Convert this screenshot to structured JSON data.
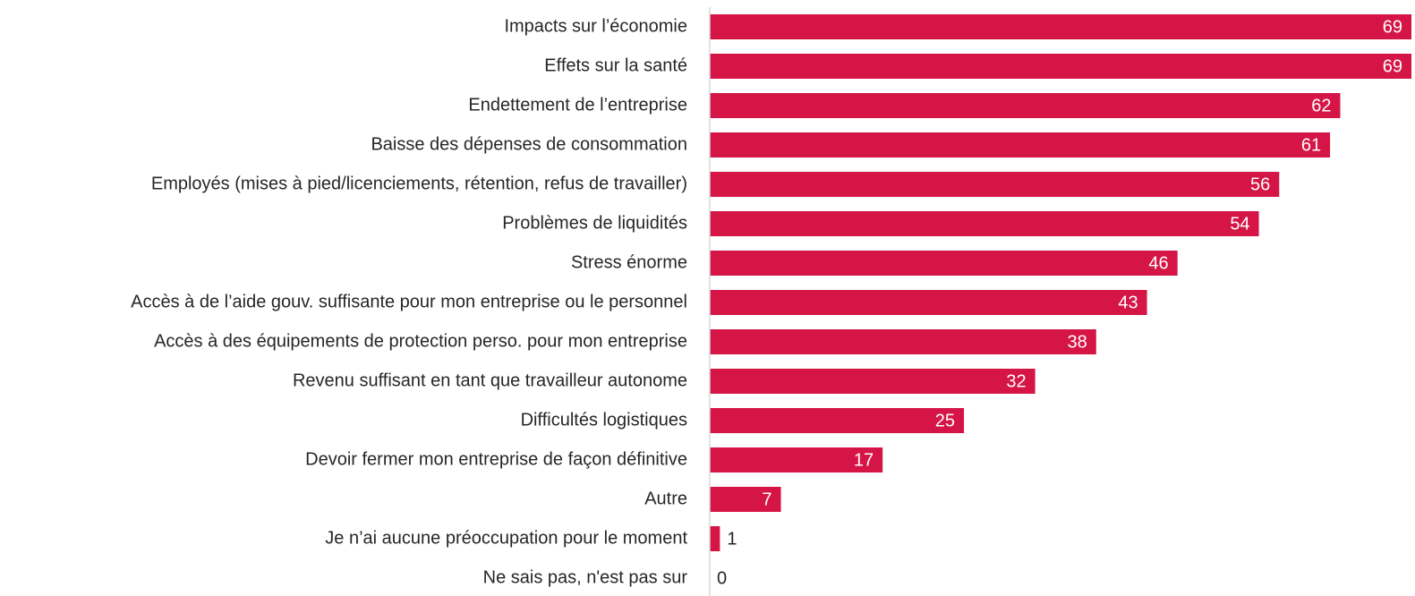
{
  "chart_data": {
    "type": "barh",
    "categories": [
      "Impacts sur l’économie",
      "Effets sur la santé",
      "Endettement de l’entreprise",
      "Baisse des dépenses de consommation",
      "Employés (mises à pied/licenciements, rétention, refus de travailler)",
      "Problèmes de liquidités",
      "Stress énorme",
      "Accès à de l’aide gouv. suffisante pour mon entreprise ou le personnel",
      "Accès à des équipements de protection perso. pour mon entreprise",
      "Revenu suffisant en tant que travailleur autonome",
      "Difficultés logistiques",
      "Devoir fermer mon entreprise de façon définitive",
      "Autre",
      "Je n’ai aucune préoccupation pour le moment",
      "Ne sais pas, n'est pas sur"
    ],
    "values": [
      69,
      69,
      62,
      61,
      56,
      54,
      46,
      43,
      38,
      32,
      25,
      17,
      7,
      1,
      0
    ],
    "color": "#d51546"
  }
}
